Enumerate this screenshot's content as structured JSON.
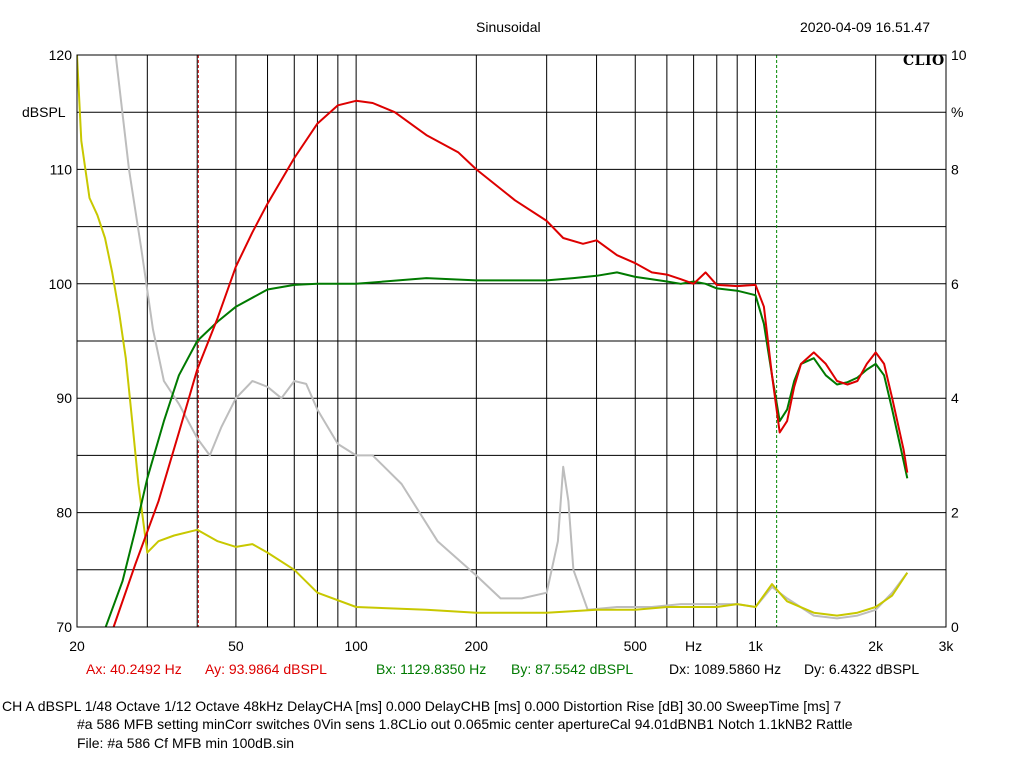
{
  "header": {
    "title": "Sinusoidal",
    "datetime": "2020-04-09 16.51.47",
    "logo": "CLIO"
  },
  "axes": {
    "y_left_unit": "dBSPL",
    "y_right_unit": "%",
    "x_unit": "Hz"
  },
  "cursors": {
    "ax": "Ax: 40.2492 Hz",
    "ay": "Ay: 93.9864 dBSPL",
    "bx": "Bx: 1129.8350 Hz",
    "by": "By: 87.5542 dBSPL",
    "dx": "Dx: 1089.5860 Hz",
    "dy": "Dy: 6.4322 dBSPL"
  },
  "footer": {
    "info": "CH A   dBSPL    1/48 Octave   1/12 Octave   48kHz   DelayCHA [ms] 0.000    DelayCHB [ms] 0.000    Distortion Rise [dB] 30.00    SweepTime [ms] 7",
    "note": "#a 586 MFB setting minCorr switches 0Vin sens 1.8CLio out 0.065mic center apertureCal 94.01dBNB1 Notch 1.1kNB2 Rattle",
    "file": "File: #a 586 Cf MFB min 100dB.sin"
  },
  "chart_data": {
    "type": "line",
    "x_scale": "log",
    "xlim": [
      20,
      3000
    ],
    "ylim": [
      70,
      120
    ],
    "y2lim": [
      0,
      10
    ],
    "x_ticks": [
      20,
      50,
      100,
      200,
      500,
      1000,
      2000,
      3000
    ],
    "x_tick_labels": [
      "20",
      "50",
      "100",
      "200",
      "500",
      "Hz",
      "1k",
      "2k",
      "3k"
    ],
    "y_ticks": [
      70,
      80,
      90,
      100,
      110,
      120
    ],
    "y2_ticks": [
      0,
      2,
      4,
      6,
      8,
      10
    ],
    "grid": true,
    "cursor_a_hz": 40.2492,
    "cursor_b_hz": 1129.835,
    "colors": {
      "red": "#dd0000",
      "green": "#007a00",
      "gray": "#bdbdbd",
      "yellow": "#c8c800",
      "cursor_a": "#cc0000",
      "cursor_b": "#008800"
    },
    "series": [
      {
        "axis": "left",
        "color": "red",
        "points": [
          [
            24.7,
            70
          ],
          [
            28,
            75.5
          ],
          [
            32,
            81
          ],
          [
            36,
            87
          ],
          [
            40,
            92.5
          ],
          [
            45,
            97
          ],
          [
            50,
            101.5
          ],
          [
            55,
            104.5
          ],
          [
            60,
            107
          ],
          [
            70,
            111
          ],
          [
            80,
            114
          ],
          [
            90,
            115.6
          ],
          [
            100,
            116
          ],
          [
            110,
            115.8
          ],
          [
            125,
            115
          ],
          [
            150,
            113
          ],
          [
            180,
            111.5
          ],
          [
            200,
            110
          ],
          [
            250,
            107.3
          ],
          [
            300,
            105.5
          ],
          [
            330,
            104
          ],
          [
            370,
            103.5
          ],
          [
            400,
            103.8
          ],
          [
            450,
            102.5
          ],
          [
            500,
            101.8
          ],
          [
            550,
            101
          ],
          [
            600,
            100.8
          ],
          [
            650,
            100.4
          ],
          [
            700,
            100
          ],
          [
            750,
            101
          ],
          [
            800,
            99.9
          ],
          [
            900,
            99.8
          ],
          [
            1000,
            99.9
          ],
          [
            1050,
            98
          ],
          [
            1100,
            92
          ],
          [
            1150,
            87
          ],
          [
            1200,
            88
          ],
          [
            1250,
            91
          ],
          [
            1300,
            93
          ],
          [
            1400,
            94
          ],
          [
            1500,
            93
          ],
          [
            1600,
            91.5
          ],
          [
            1700,
            91.2
          ],
          [
            1800,
            91.5
          ],
          [
            1900,
            93
          ],
          [
            2000,
            94
          ],
          [
            2100,
            93
          ],
          [
            2200,
            90
          ],
          [
            2350,
            85.5
          ],
          [
            2400,
            83.5
          ]
        ]
      },
      {
        "axis": "left",
        "color": "green",
        "points": [
          [
            23.6,
            70
          ],
          [
            26,
            74
          ],
          [
            28,
            78.5
          ],
          [
            30,
            83
          ],
          [
            33,
            88
          ],
          [
            36,
            92
          ],
          [
            40,
            95
          ],
          [
            45,
            96.7
          ],
          [
            50,
            98
          ],
          [
            60,
            99.5
          ],
          [
            70,
            99.9
          ],
          [
            80,
            100
          ],
          [
            100,
            100
          ],
          [
            150,
            100.5
          ],
          [
            200,
            100.3
          ],
          [
            250,
            100.3
          ],
          [
            300,
            100.3
          ],
          [
            350,
            100.5
          ],
          [
            400,
            100.7
          ],
          [
            450,
            101
          ],
          [
            500,
            100.6
          ],
          [
            550,
            100.4
          ],
          [
            600,
            100.2
          ],
          [
            650,
            100
          ],
          [
            700,
            100.2
          ],
          [
            750,
            100
          ],
          [
            800,
            99.6
          ],
          [
            900,
            99.4
          ],
          [
            1000,
            99
          ],
          [
            1050,
            96.5
          ],
          [
            1100,
            92
          ],
          [
            1150,
            88
          ],
          [
            1200,
            89
          ],
          [
            1250,
            91.5
          ],
          [
            1300,
            93
          ],
          [
            1400,
            93.5
          ],
          [
            1500,
            92
          ],
          [
            1600,
            91.2
          ],
          [
            1700,
            91.4
          ],
          [
            1800,
            91.8
          ],
          [
            1900,
            92.5
          ],
          [
            2000,
            93
          ],
          [
            2100,
            92
          ],
          [
            2200,
            89
          ],
          [
            2350,
            84.5
          ],
          [
            2400,
            83
          ]
        ]
      },
      {
        "axis": "right",
        "color": "gray",
        "points": [
          [
            25,
            10
          ],
          [
            27,
            8
          ],
          [
            29,
            6.6
          ],
          [
            31,
            5.2
          ],
          [
            33,
            4.3
          ],
          [
            36,
            3.9
          ],
          [
            40,
            3.3
          ],
          [
            43,
            3
          ],
          [
            46,
            3.5
          ],
          [
            50,
            4
          ],
          [
            55,
            4.3
          ],
          [
            60,
            4.2
          ],
          [
            65,
            4
          ],
          [
            70,
            4.3
          ],
          [
            75,
            4.25
          ],
          [
            80,
            3.8
          ],
          [
            90,
            3.2
          ],
          [
            100,
            3
          ],
          [
            110,
            3
          ],
          [
            130,
            2.5
          ],
          [
            160,
            1.5
          ],
          [
            200,
            0.9
          ],
          [
            230,
            0.5
          ],
          [
            260,
            0.5
          ],
          [
            300,
            0.6
          ],
          [
            320,
            1.5
          ],
          [
            330,
            2.8
          ],
          [
            340,
            2.2
          ],
          [
            350,
            1
          ],
          [
            380,
            0.3
          ],
          [
            450,
            0.35
          ],
          [
            550,
            0.35
          ],
          [
            650,
            0.4
          ],
          [
            750,
            0.4
          ],
          [
            900,
            0.4
          ],
          [
            1000,
            0.35
          ],
          [
            1100,
            0.7
          ],
          [
            1200,
            0.5
          ],
          [
            1400,
            0.2
          ],
          [
            1600,
            0.15
          ],
          [
            1800,
            0.2
          ],
          [
            2000,
            0.3
          ],
          [
            2200,
            0.6
          ],
          [
            2400,
            0.95
          ]
        ]
      },
      {
        "axis": "right",
        "color": "yellow",
        "points": [
          [
            20,
            10
          ],
          [
            20.5,
            8.5
          ],
          [
            21.5,
            7.5
          ],
          [
            22.5,
            7.2
          ],
          [
            23.5,
            6.8
          ],
          [
            24.5,
            6.2
          ],
          [
            25.5,
            5.5
          ],
          [
            26.5,
            4.7
          ],
          [
            27.5,
            3.6
          ],
          [
            28.5,
            2.5
          ],
          [
            30,
            1.3
          ],
          [
            32,
            1.5
          ],
          [
            35,
            1.6
          ],
          [
            40,
            1.7
          ],
          [
            45,
            1.5
          ],
          [
            50,
            1.4
          ],
          [
            55,
            1.45
          ],
          [
            60,
            1.3
          ],
          [
            70,
            1
          ],
          [
            80,
            0.6
          ],
          [
            100,
            0.35
          ],
          [
            150,
            0.3
          ],
          [
            200,
            0.25
          ],
          [
            300,
            0.25
          ],
          [
            400,
            0.3
          ],
          [
            500,
            0.3
          ],
          [
            600,
            0.35
          ],
          [
            700,
            0.35
          ],
          [
            800,
            0.35
          ],
          [
            900,
            0.4
          ],
          [
            1000,
            0.35
          ],
          [
            1100,
            0.75
          ],
          [
            1200,
            0.45
          ],
          [
            1400,
            0.25
          ],
          [
            1600,
            0.2
          ],
          [
            1800,
            0.25
          ],
          [
            2000,
            0.35
          ],
          [
            2200,
            0.55
          ],
          [
            2400,
            0.95
          ]
        ]
      }
    ]
  }
}
